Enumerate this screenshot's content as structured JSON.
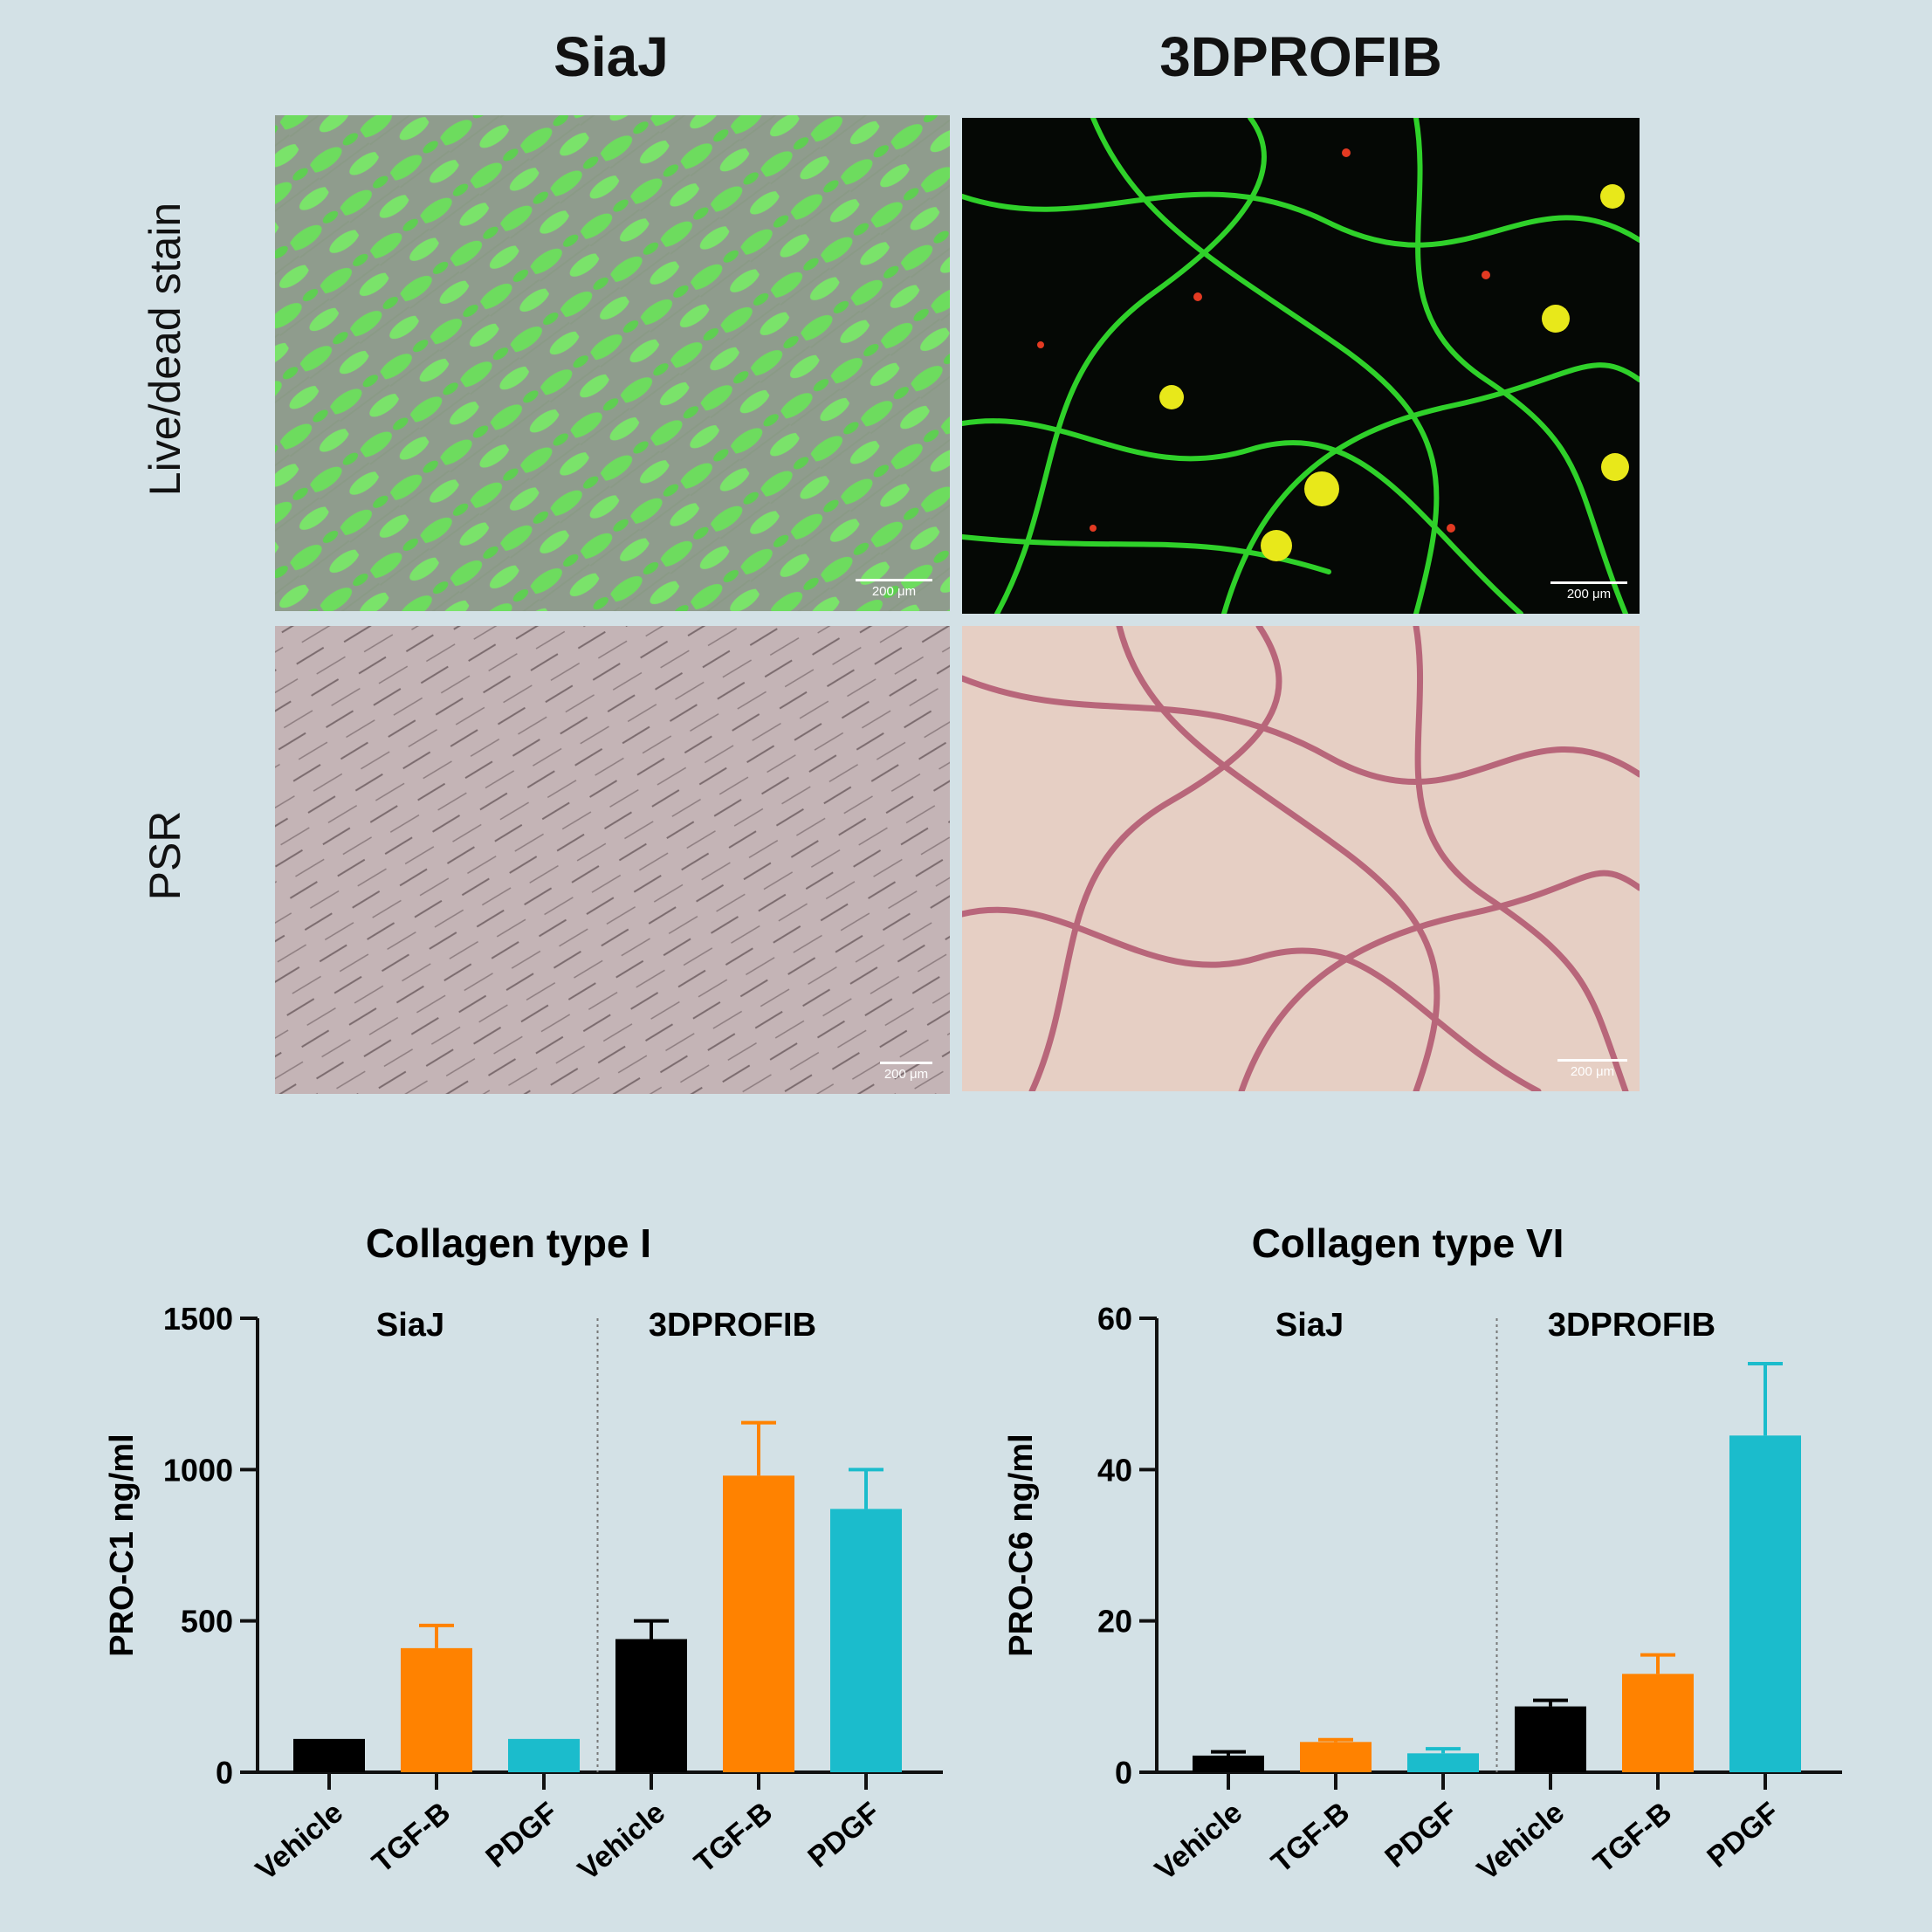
{
  "image_panel": {
    "columns": [
      "SiaJ",
      "3DPROFIB"
    ],
    "rows": [
      "Live/dead stain",
      "PSR"
    ],
    "scale_bar_label": "200 μm"
  },
  "chart_data": [
    {
      "type": "bar",
      "title": "Collagen type I",
      "ylabel": "PRO-C1 ng/ml",
      "ylim": [
        0,
        1500
      ],
      "yticks": [
        0,
        500,
        1000,
        1500
      ],
      "groups": [
        "SiaJ",
        "3DPROFIB"
      ],
      "categories": [
        "Vehicle",
        "TGF-B",
        "PDGF",
        "Vehicle",
        "TGF-B",
        "PDGF"
      ],
      "values": [
        110,
        410,
        110,
        440,
        980,
        870
      ],
      "errors": [
        0,
        75,
        0,
        60,
        175,
        130
      ],
      "colors": [
        "#000000",
        "#ff8200",
        "#1bbccc",
        "#000000",
        "#ff8200",
        "#1bbccc"
      ]
    },
    {
      "type": "bar",
      "title": "Collagen type VI",
      "ylabel": "PRO-C6 ng/ml",
      "ylim": [
        0,
        60
      ],
      "yticks": [
        0,
        20,
        40,
        60
      ],
      "groups": [
        "SiaJ",
        "3DPROFIB"
      ],
      "categories": [
        "Vehicle",
        "TGF-B",
        "PDGF",
        "Vehicle",
        "TGF-B",
        "PDGF"
      ],
      "values": [
        2.2,
        4.0,
        2.5,
        8.7,
        13.0,
        44.5
      ],
      "errors": [
        0.5,
        0.3,
        0.6,
        0.8,
        2.5,
        9.5
      ],
      "colors": [
        "#000000",
        "#ff8200",
        "#1bbccc",
        "#000000",
        "#ff8200",
        "#1bbccc"
      ]
    }
  ]
}
